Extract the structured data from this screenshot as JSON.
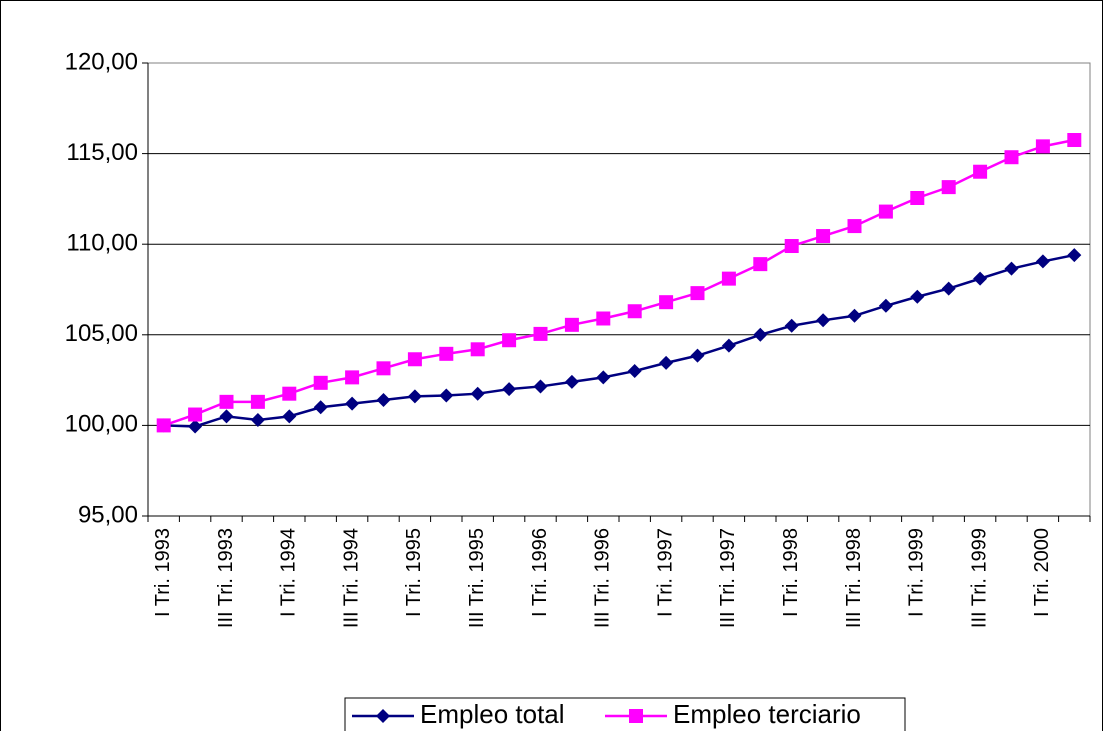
{
  "chart_data": {
    "type": "line",
    "categories": [
      "I Tri. 1993",
      null,
      "III Tri. 1993",
      null,
      "I Tri. 1994",
      null,
      "III Tri. 1994",
      null,
      "I Tri. 1995",
      null,
      "III Tri. 1995",
      null,
      "I Tri. 1996",
      null,
      "III Tri. 1996",
      null,
      "I Tri. 1997",
      null,
      "III Tri. 1997",
      null,
      "I Tri. 1998",
      null,
      "III Tri. 1998",
      null,
      "I Tri. 1999",
      null,
      "III Tri. 1999",
      null,
      "I Tri. 2000",
      null
    ],
    "series": [
      {
        "name": "Empleo total",
        "color": "#000080",
        "marker": "diamond",
        "values": [
          100.0,
          99.94,
          100.5,
          100.3,
          100.5,
          101.0,
          101.2,
          101.4,
          101.6,
          101.65,
          101.75,
          102.0,
          102.15,
          102.4,
          102.65,
          103.0,
          103.45,
          103.85,
          104.4,
          105.0,
          105.5,
          105.8,
          106.05,
          106.6,
          107.1,
          107.55,
          108.1,
          108.65,
          109.05,
          109.4
        ]
      },
      {
        "name": "Empleo terciario",
        "color": "#ff00ff",
        "marker": "square",
        "values": [
          100.0,
          100.6,
          101.3,
          101.3,
          101.75,
          102.35,
          102.65,
          103.15,
          103.65,
          103.95,
          104.2,
          104.7,
          105.05,
          105.55,
          105.9,
          106.3,
          106.8,
          107.3,
          108.1,
          108.9,
          109.9,
          110.45,
          111.0,
          111.8,
          112.55,
          113.15,
          114.0,
          114.8,
          115.4,
          115.75
        ]
      }
    ],
    "ylim": [
      95,
      120
    ],
    "yticks": [
      {
        "value": 95,
        "label": "95,00"
      },
      {
        "value": 100,
        "label": "100,00"
      },
      {
        "value": 105,
        "label": "105,00"
      },
      {
        "value": 110,
        "label": "110,00"
      },
      {
        "value": 115,
        "label": "115,00"
      },
      {
        "value": 120,
        "label": "120,00"
      }
    ],
    "grid": true,
    "legend": "bottom"
  }
}
